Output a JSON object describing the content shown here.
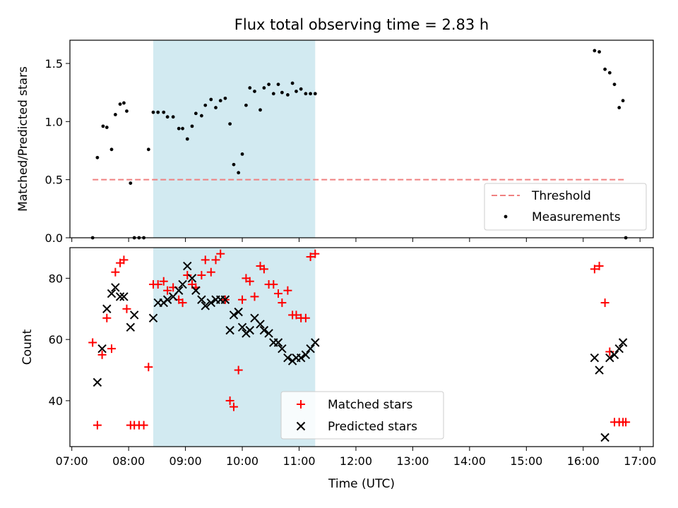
{
  "chart_data": [
    {
      "type": "scatter",
      "title": "Flux total observing time = 2.83 h",
      "xlabel": "",
      "ylabel": "Matched/Predicted stars",
      "ylim": [
        0,
        1.7
      ],
      "yticks": [
        "0.0",
        "0.5",
        "1.0",
        "1.5"
      ],
      "shaded_interval": [
        "08:26",
        "11:17"
      ],
      "shaded_color": "#add8e6",
      "legend_position": "lower right",
      "series": [
        {
          "name": "Threshold",
          "kind": "dashed-line",
          "color": "#f08080",
          "x": [
            "07:22",
            "16:45"
          ],
          "y": [
            0.5,
            0.5
          ]
        },
        {
          "name": "Measurements",
          "kind": "points",
          "color": "#000000",
          "x": [
            "07:22",
            "07:27",
            "07:33",
            "07:37",
            "07:42",
            "07:46",
            "07:51",
            "07:55",
            "07:58",
            "08:02",
            "08:06",
            "08:11",
            "08:16",
            "08:21",
            "08:26",
            "08:31",
            "08:37",
            "08:41",
            "08:47",
            "08:53",
            "08:57",
            "09:02",
            "09:07",
            "09:11",
            "09:17",
            "09:21",
            "09:27",
            "09:32",
            "09:37",
            "09:42",
            "09:47",
            "09:51",
            "09:56",
            "10:00",
            "10:04",
            "10:08",
            "10:13",
            "10:19",
            "10:23",
            "10:28",
            "10:33",
            "10:38",
            "10:42",
            "10:48",
            "10:53",
            "10:57",
            "11:02",
            "11:07",
            "11:12",
            "11:17",
            "16:12",
            "16:17",
            "16:23",
            "16:28",
            "16:33",
            "16:38",
            "16:42",
            "16:45"
          ],
          "y": [
            0.0,
            0.69,
            0.96,
            0.95,
            0.76,
            1.06,
            1.15,
            1.16,
            1.09,
            0.47,
            0.0,
            0.0,
            0.0,
            0.76,
            1.08,
            1.08,
            1.08,
            1.04,
            1.04,
            0.94,
            0.94,
            0.85,
            0.96,
            1.07,
            1.05,
            1.14,
            1.19,
            1.12,
            1.18,
            1.2,
            0.98,
            0.63,
            0.56,
            0.72,
            1.14,
            1.29,
            1.26,
            1.1,
            1.29,
            1.32,
            1.24,
            1.32,
            1.25,
            1.23,
            1.33,
            1.26,
            1.28,
            1.24,
            1.24,
            1.24,
            1.61,
            1.6,
            1.45,
            1.42,
            1.32,
            1.12,
            1.18,
            0.0
          ]
        }
      ]
    },
    {
      "type": "scatter",
      "title": "",
      "xlabel": "Time (UTC)",
      "ylabel": "Count",
      "ylim": [
        25,
        90
      ],
      "yticks": [
        "40",
        "60",
        "80"
      ],
      "xlim": [
        "06:58",
        "17:14"
      ],
      "xticks": [
        "07:00",
        "08:00",
        "09:00",
        "10:00",
        "11:00",
        "12:00",
        "13:00",
        "14:00",
        "15:00",
        "16:00",
        "17:00"
      ],
      "shaded_interval": [
        "08:26",
        "11:17"
      ],
      "shaded_color": "#add8e6",
      "legend_position": "lower center",
      "series": [
        {
          "name": "Matched stars",
          "marker": "+",
          "color": "#ff0000",
          "x": [
            "07:22",
            "07:27",
            "07:32",
            "07:37",
            "07:42",
            "07:46",
            "07:51",
            "07:55",
            "07:58",
            "08:02",
            "08:06",
            "08:11",
            "08:16",
            "08:21",
            "08:26",
            "08:31",
            "08:37",
            "08:41",
            "08:47",
            "08:53",
            "08:57",
            "09:02",
            "09:07",
            "09:11",
            "09:17",
            "09:21",
            "09:27",
            "09:32",
            "09:37",
            "09:42",
            "09:47",
            "09:51",
            "09:56",
            "10:00",
            "10:04",
            "10:08",
            "10:13",
            "10:19",
            "10:23",
            "10:28",
            "10:33",
            "10:38",
            "10:42",
            "10:48",
            "10:53",
            "10:57",
            "11:02",
            "11:07",
            "11:12",
            "11:17",
            "16:12",
            "16:17",
            "16:23",
            "16:28",
            "16:33",
            "16:38",
            "16:42",
            "16:45"
          ],
          "y": [
            59,
            32,
            55,
            67,
            57,
            82,
            85,
            86,
            70,
            32,
            32,
            32,
            32,
            51,
            78,
            78,
            79,
            76,
            77,
            73,
            72,
            81,
            78,
            77,
            81,
            86,
            82,
            86,
            88,
            73,
            40,
            38,
            50,
            73,
            80,
            79,
            74,
            84,
            83,
            78,
            78,
            75,
            72,
            76,
            68,
            68,
            67,
            67,
            87,
            88,
            83,
            84,
            72,
            56,
            33,
            33,
            33,
            33
          ]
        },
        {
          "name": "Predicted stars",
          "marker": "x",
          "color": "#000000",
          "x": [
            "07:27",
            "07:32",
            "07:37",
            "07:42",
            "07:46",
            "07:51",
            "07:55",
            "08:02",
            "08:06",
            "08:26",
            "08:31",
            "08:37",
            "08:41",
            "08:47",
            "08:53",
            "08:57",
            "09:02",
            "09:07",
            "09:11",
            "09:17",
            "09:21",
            "09:27",
            "09:32",
            "09:37",
            "09:42",
            "09:47",
            "09:51",
            "09:56",
            "10:00",
            "10:04",
            "10:08",
            "10:13",
            "10:19",
            "10:23",
            "10:28",
            "10:33",
            "10:38",
            "10:42",
            "10:48",
            "10:53",
            "10:57",
            "11:02",
            "11:07",
            "11:12",
            "11:17",
            "16:12",
            "16:17",
            "16:23",
            "16:28",
            "16:33",
            "16:38",
            "16:42"
          ],
          "y": [
            46,
            57,
            70,
            75,
            77,
            74,
            74,
            64,
            68,
            67,
            72,
            72,
            73,
            74,
            76,
            78,
            84,
            80,
            76,
            73,
            71,
            72,
            73,
            73,
            73,
            63,
            68,
            69,
            64,
            62,
            63,
            67,
            65,
            63,
            62,
            59,
            59,
            57,
            54,
            53,
            54,
            54,
            55,
            57,
            59,
            54,
            50,
            28,
            54,
            55,
            57,
            59
          ]
        }
      ]
    }
  ]
}
